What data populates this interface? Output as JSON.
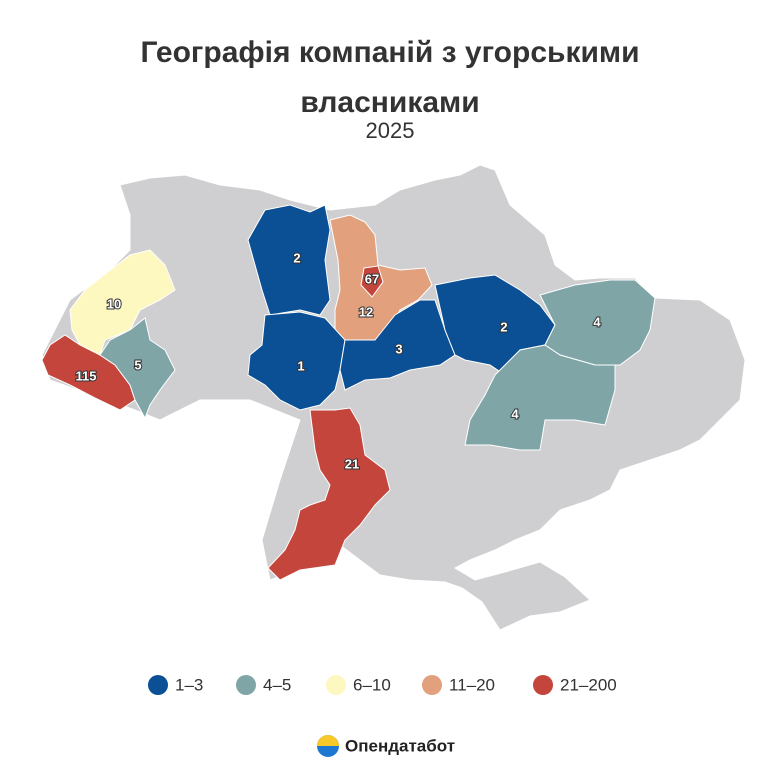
{
  "title": "Географія компаній з угорськими власниками",
  "subtitle": "2025",
  "legend": [
    {
      "label": "1–3",
      "color": "#0b4f95"
    },
    {
      "label": "4–5",
      "color": "#7fa5a7"
    },
    {
      "label": "6–10",
      "color": "#fdf8bf"
    },
    {
      "label": "11–20",
      "color": "#e2a07c"
    },
    {
      "label": "21–200",
      "color": "#c4453b"
    }
  ],
  "regions": [
    {
      "value": 2,
      "color": "#0b4f95"
    },
    {
      "value": 12,
      "color": "#e2a07c"
    },
    {
      "value": 67,
      "color": "#c4453b"
    },
    {
      "value": 1,
      "color": "#0b4f95"
    },
    {
      "value": 3,
      "color": "#0b4f95"
    },
    {
      "value": 2,
      "color": "#0b4f95"
    },
    {
      "value": 4,
      "color": "#7fa5a7"
    },
    {
      "value": 4,
      "color": "#7fa5a7"
    },
    {
      "value": 21,
      "color": "#c4453b"
    },
    {
      "value": 10,
      "color": "#fdf8bf"
    },
    {
      "value": 115,
      "color": "#c4453b"
    },
    {
      "value": 5,
      "color": "#7fa5a7"
    }
  ],
  "logo": "Опендатабот"
}
